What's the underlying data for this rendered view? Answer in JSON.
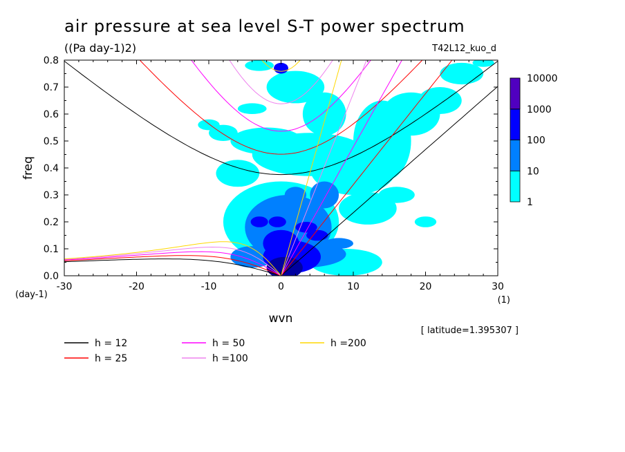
{
  "chart_data": {
    "type": "heatmap",
    "title": "air pressure at sea level S-T power spectrum",
    "subtitle": "((Pa day-1)2)",
    "run_label": "T42L12_kuo_d",
    "xlabel": "wvn",
    "ylabel": "freq",
    "x_unit": "(1)",
    "y_unit": "(day-1)",
    "latitude_note": "[ latitude=1.395307 ]",
    "xlim": [
      -30,
      30
    ],
    "ylim": [
      0,
      0.8
    ],
    "x_ticks": [
      -30,
      -20,
      -10,
      0,
      10,
      20,
      30
    ],
    "x_tick_labels": [
      "-30",
      "-20",
      "-10",
      "0",
      "10",
      "20",
      "30"
    ],
    "y_ticks": [
      0,
      0.1,
      0.2,
      0.3,
      0.4,
      0.5,
      0.6,
      0.7,
      0.8
    ],
    "y_tick_labels": [
      "0.0",
      "0.1",
      "0.2",
      "0.3",
      "0.4",
      "0.5",
      "0.6",
      "0.7",
      "0.8"
    ],
    "colorbar": {
      "levels": [
        "1",
        "10",
        "100",
        "1000",
        "10000"
      ],
      "colors": [
        "#00ffff",
        "#0080ff",
        "#0000ff",
        "#0000a0",
        "#5000c0"
      ]
    },
    "dispersion_curves": [
      {
        "name": "h = 12",
        "h": 12,
        "color": "#000000"
      },
      {
        "name": "h = 25",
        "h": 25,
        "color": "#ff0000"
      },
      {
        "name": "h = 50",
        "h": 50,
        "color": "#ff00ff"
      },
      {
        "name": "h =100",
        "h": 100,
        "color": "#ee82ee"
      },
      {
        "name": "h =200",
        "h": 200,
        "color": "#ffd700"
      }
    ],
    "spectrum_blobs": [
      {
        "k": 0.5,
        "f": 0.03,
        "level": 3,
        "rk": 2.5,
        "rf": 0.04
      },
      {
        "k": 1.5,
        "f": 0.07,
        "level": 2,
        "rk": 4,
        "rf": 0.06
      },
      {
        "k": 0,
        "f": 0.12,
        "level": 2,
        "rk": 2.5,
        "rf": 0.05
      },
      {
        "k": -3,
        "f": 0.2,
        "level": 2,
        "rk": 1.2,
        "rf": 0.02
      },
      {
        "k": -0.5,
        "f": 0.2,
        "level": 2,
        "rk": 1.2,
        "rf": 0.02
      },
      {
        "k": 3.5,
        "f": 0.18,
        "level": 2,
        "rk": 1.5,
        "rf": 0.02
      },
      {
        "k": 5,
        "f": 0.15,
        "level": 2,
        "rk": 1.5,
        "rf": 0.02
      },
      {
        "k": 0,
        "f": 0.77,
        "level": 2,
        "rk": 1,
        "rf": 0.02
      },
      {
        "k": 1,
        "f": 0.18,
        "level": 1,
        "rk": 6,
        "rf": 0.12
      },
      {
        "k": 3,
        "f": 0.08,
        "level": 1,
        "rk": 6,
        "rf": 0.05
      },
      {
        "k": -4,
        "f": 0.07,
        "level": 1,
        "rk": 3,
        "rf": 0.04
      },
      {
        "k": 6,
        "f": 0.3,
        "level": 1,
        "rk": 2,
        "rf": 0.05
      },
      {
        "k": 8,
        "f": 0.12,
        "level": 1,
        "rk": 2,
        "rf": 0.02
      },
      {
        "k": 2,
        "f": 0.3,
        "level": 1,
        "rk": 1.5,
        "rf": 0.03
      },
      {
        "k": 0,
        "f": 0.2,
        "level": 0,
        "rk": 8,
        "rf": 0.15
      },
      {
        "k": 4,
        "f": 0.45,
        "level": 0,
        "rk": 8,
        "rf": 0.08
      },
      {
        "k": -2,
        "f": 0.5,
        "level": 0,
        "rk": 5,
        "rf": 0.05
      },
      {
        "k": 10,
        "f": 0.4,
        "level": 0,
        "rk": 6,
        "rf": 0.1
      },
      {
        "k": 14,
        "f": 0.5,
        "level": 0,
        "rk": 4,
        "rf": 0.15
      },
      {
        "k": 18,
        "f": 0.6,
        "level": 0,
        "rk": 4,
        "rf": 0.08
      },
      {
        "k": 22,
        "f": 0.65,
        "level": 0,
        "rk": 3,
        "rf": 0.05
      },
      {
        "k": 25,
        "f": 0.75,
        "level": 0,
        "rk": 3,
        "rf": 0.04
      },
      {
        "k": 12,
        "f": 0.25,
        "level": 0,
        "rk": 4,
        "rf": 0.06
      },
      {
        "k": 16,
        "f": 0.3,
        "level": 0,
        "rk": 2.5,
        "rf": 0.03
      },
      {
        "k": -6,
        "f": 0.38,
        "level": 0,
        "rk": 3,
        "rf": 0.05
      },
      {
        "k": -8,
        "f": 0.53,
        "level": 0,
        "rk": 2,
        "rf": 0.03
      },
      {
        "k": 2,
        "f": 0.7,
        "level": 0,
        "rk": 4,
        "rf": 0.06
      },
      {
        "k": 6,
        "f": 0.6,
        "level": 0,
        "rk": 3,
        "rf": 0.08
      },
      {
        "k": -4,
        "f": 0.62,
        "level": 0,
        "rk": 2,
        "rf": 0.02
      },
      {
        "k": -10,
        "f": 0.56,
        "level": 0,
        "rk": 1.5,
        "rf": 0.02
      },
      {
        "k": 9,
        "f": 0.05,
        "level": 0,
        "rk": 5,
        "rf": 0.05
      },
      {
        "k": 20,
        "f": 0.2,
        "level": 0,
        "rk": 1.5,
        "rf": 0.02
      },
      {
        "k": -3,
        "f": 0.78,
        "level": 0,
        "rk": 2,
        "rf": 0.02
      },
      {
        "k": 28,
        "f": 0.79,
        "level": 0,
        "rk": 1.5,
        "rf": 0.015
      }
    ]
  }
}
